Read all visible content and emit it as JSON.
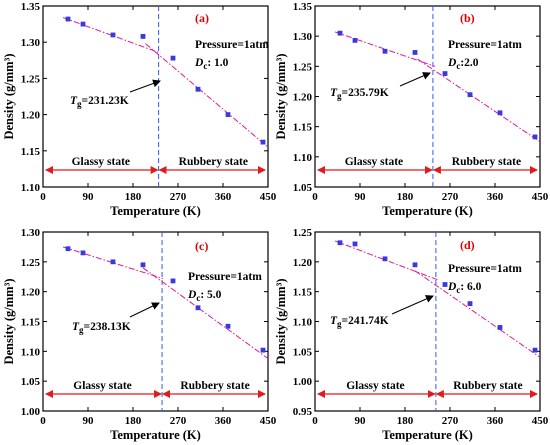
{
  "colors": {
    "marker": "#3a3adc",
    "fit": "#e0189a",
    "vline": "#3a5ae6",
    "state_arrow": "#e01b1b",
    "panel_letter": "#e00000",
    "axis": "#000000"
  },
  "chart_data": [
    {
      "type": "scatter",
      "panel": "(a)",
      "xlabel": "Temperature (K)",
      "ylabel": "Density (g/mm³)",
      "xlim": [
        0,
        450
      ],
      "ylim": [
        1.1,
        1.35
      ],
      "xticks": [
        "0",
        "90",
        "180",
        "270",
        "360",
        "450"
      ],
      "yticks": [
        "1.10",
        "1.15",
        "1.20",
        "1.25",
        "1.30",
        "1.35"
      ],
      "points": [
        [
          50,
          1.332
        ],
        [
          80,
          1.325
        ],
        [
          140,
          1.31
        ],
        [
          200,
          1.308
        ],
        [
          260,
          1.278
        ],
        [
          310,
          1.235
        ],
        [
          370,
          1.2
        ],
        [
          440,
          1.162
        ]
      ],
      "fit_low": [
        [
          40,
          1.334
        ],
        [
          235,
          1.285
        ]
      ],
      "fit_high": [
        [
          205,
          1.298
        ],
        [
          450,
          1.155
        ]
      ],
      "tg_x": 231.23,
      "tg_label": "T",
      "tg_sub": "g",
      "tg_value": "=231.23K",
      "pressure": "Pressure=1atm",
      "dc_label": "D",
      "dc_sub": "c",
      "dc_value": ": 1.0",
      "glassy": "Glassy state",
      "rubbery": "Rubbery state"
    },
    {
      "type": "scatter",
      "panel": "(b)",
      "xlabel": "Temperature (K)",
      "ylabel": "Density (g/mm³)",
      "xlim": [
        0,
        450
      ],
      "ylim": [
        1.05,
        1.35
      ],
      "xticks": [
        "0",
        "90",
        "180",
        "270",
        "360",
        "450"
      ],
      "yticks": [
        "1.05",
        "1.10",
        "1.15",
        "1.20",
        "1.25",
        "1.30",
        "1.35"
      ],
      "points": [
        [
          50,
          1.305
        ],
        [
          80,
          1.293
        ],
        [
          140,
          1.275
        ],
        [
          200,
          1.273
        ],
        [
          260,
          1.238
        ],
        [
          310,
          1.203
        ],
        [
          370,
          1.173
        ],
        [
          440,
          1.133
        ]
      ],
      "fit_low": [
        [
          40,
          1.307
        ],
        [
          240,
          1.25
        ]
      ],
      "fit_high": [
        [
          205,
          1.262
        ],
        [
          450,
          1.125
        ]
      ],
      "tg_x": 235.79,
      "tg_label": "T",
      "tg_sub": "g",
      "tg_value": "=235.79K",
      "pressure": "Pressure=1atm",
      "dc_label": "D",
      "dc_sub": "c",
      "dc_value": ":2.0",
      "glassy": "Glassy state",
      "rubbery": "Rubbery state"
    },
    {
      "type": "scatter",
      "panel": "(c)",
      "xlabel": "Temperature (K)",
      "ylabel": "Density (g/mm³)",
      "xlim": [
        0,
        450
      ],
      "ylim": [
        1.0,
        1.3
      ],
      "xticks": [
        "0",
        "90",
        "180",
        "270",
        "360",
        "450"
      ],
      "yticks": [
        "1.00",
        "1.05",
        "1.10",
        "1.15",
        "1.20",
        "1.25",
        "1.30"
      ],
      "points": [
        [
          50,
          1.272
        ],
        [
          80,
          1.265
        ],
        [
          140,
          1.25
        ],
        [
          200,
          1.245
        ],
        [
          260,
          1.218
        ],
        [
          310,
          1.173
        ],
        [
          370,
          1.142
        ],
        [
          440,
          1.102
        ]
      ],
      "fit_low": [
        [
          40,
          1.275
        ],
        [
          240,
          1.222
        ]
      ],
      "fit_high": [
        [
          200,
          1.24
        ],
        [
          450,
          1.088
        ]
      ],
      "tg_x": 238.13,
      "tg_label": "T",
      "tg_sub": "g",
      "tg_value": "=238.13K",
      "pressure": "Pressure=1atm",
      "dc_label": "D",
      "dc_sub": "c",
      "dc_value": ": 5.0",
      "glassy": "Glassy state",
      "rubbery": "Rubbery state"
    },
    {
      "type": "scatter",
      "panel": "(d)",
      "xlabel": "Temperature (K)",
      "ylabel": "Density (g/mm³)",
      "xlim": [
        0,
        450
      ],
      "ylim": [
        0.95,
        1.25
      ],
      "xticks": [
        "0",
        "90",
        "180",
        "270",
        "360",
        "450"
      ],
      "yticks": [
        "0.95",
        "1.00",
        "1.05",
        "1.10",
        "1.15",
        "1.20",
        "1.25"
      ],
      "points": [
        [
          50,
          1.232
        ],
        [
          80,
          1.23
        ],
        [
          140,
          1.205
        ],
        [
          200,
          1.195
        ],
        [
          260,
          1.162
        ],
        [
          310,
          1.13
        ],
        [
          370,
          1.09
        ],
        [
          440,
          1.052
        ]
      ],
      "fit_low": [
        [
          40,
          1.235
        ],
        [
          245,
          1.17
        ]
      ],
      "fit_high": [
        [
          200,
          1.185
        ],
        [
          450,
          1.04
        ]
      ],
      "tg_x": 241.74,
      "tg_label": "T",
      "tg_sub": "g",
      "tg_value": "=241.74K",
      "pressure": "Pressure=1atm",
      "dc_label": "D",
      "dc_sub": "c",
      "dc_value": ": 6.0",
      "glassy": "Glassy state",
      "rubbery": "Rubbery state"
    }
  ]
}
